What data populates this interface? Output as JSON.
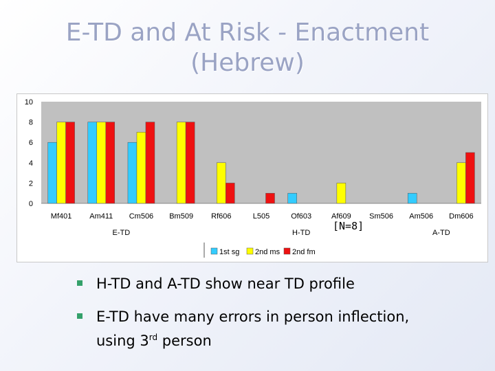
{
  "slide": {
    "title_line1": "E-TD and At Risk - Enactment",
    "title_line2": "(Hebrew)",
    "note": "[N=8]",
    "bullets": [
      {
        "text": "H-TD and A-TD show near TD profile"
      },
      {
        "text_before": "E-TD have many errors in person inflection,",
        "text_line2": "using 3",
        "sup": "rd",
        "text_after": " person"
      }
    ]
  },
  "colors": {
    "plot_bg": "#c0c0c0",
    "s1": "#33ccff",
    "s2": "#ffff00",
    "s3": "#ee1111",
    "bullet": "#34a06a"
  },
  "chart_data": {
    "type": "bar",
    "title": "",
    "xlabel": "",
    "ylabel": "",
    "ylim": [
      0,
      10
    ],
    "yticks": [
      0,
      2,
      4,
      6,
      8,
      10
    ],
    "categories": [
      "Mf401",
      "Am411",
      "Cm506",
      "Bm509",
      "Rf606",
      "L505",
      "Of603",
      "Af609",
      "Sm506",
      "Am506",
      "Dm606"
    ],
    "groups": [
      {
        "label": "E-TD",
        "from": 0,
        "to": 3
      },
      {
        "label": "H-TD",
        "from": 4,
        "to": 8
      },
      {
        "label": "A-TD",
        "from": 9,
        "to": 10
      }
    ],
    "series": [
      {
        "name": "1st sg",
        "values": [
          6,
          8,
          6,
          0,
          0,
          0,
          1,
          0,
          0,
          1,
          0
        ]
      },
      {
        "name": "2nd ms",
        "values": [
          8,
          8,
          7,
          8,
          4,
          0,
          0,
          2,
          0,
          0,
          4
        ]
      },
      {
        "name": "2nd fm",
        "values": [
          8,
          8,
          8,
          8,
          2,
          1,
          0,
          0,
          0,
          0,
          5
        ]
      }
    ],
    "legend_position": "bottom-center"
  }
}
